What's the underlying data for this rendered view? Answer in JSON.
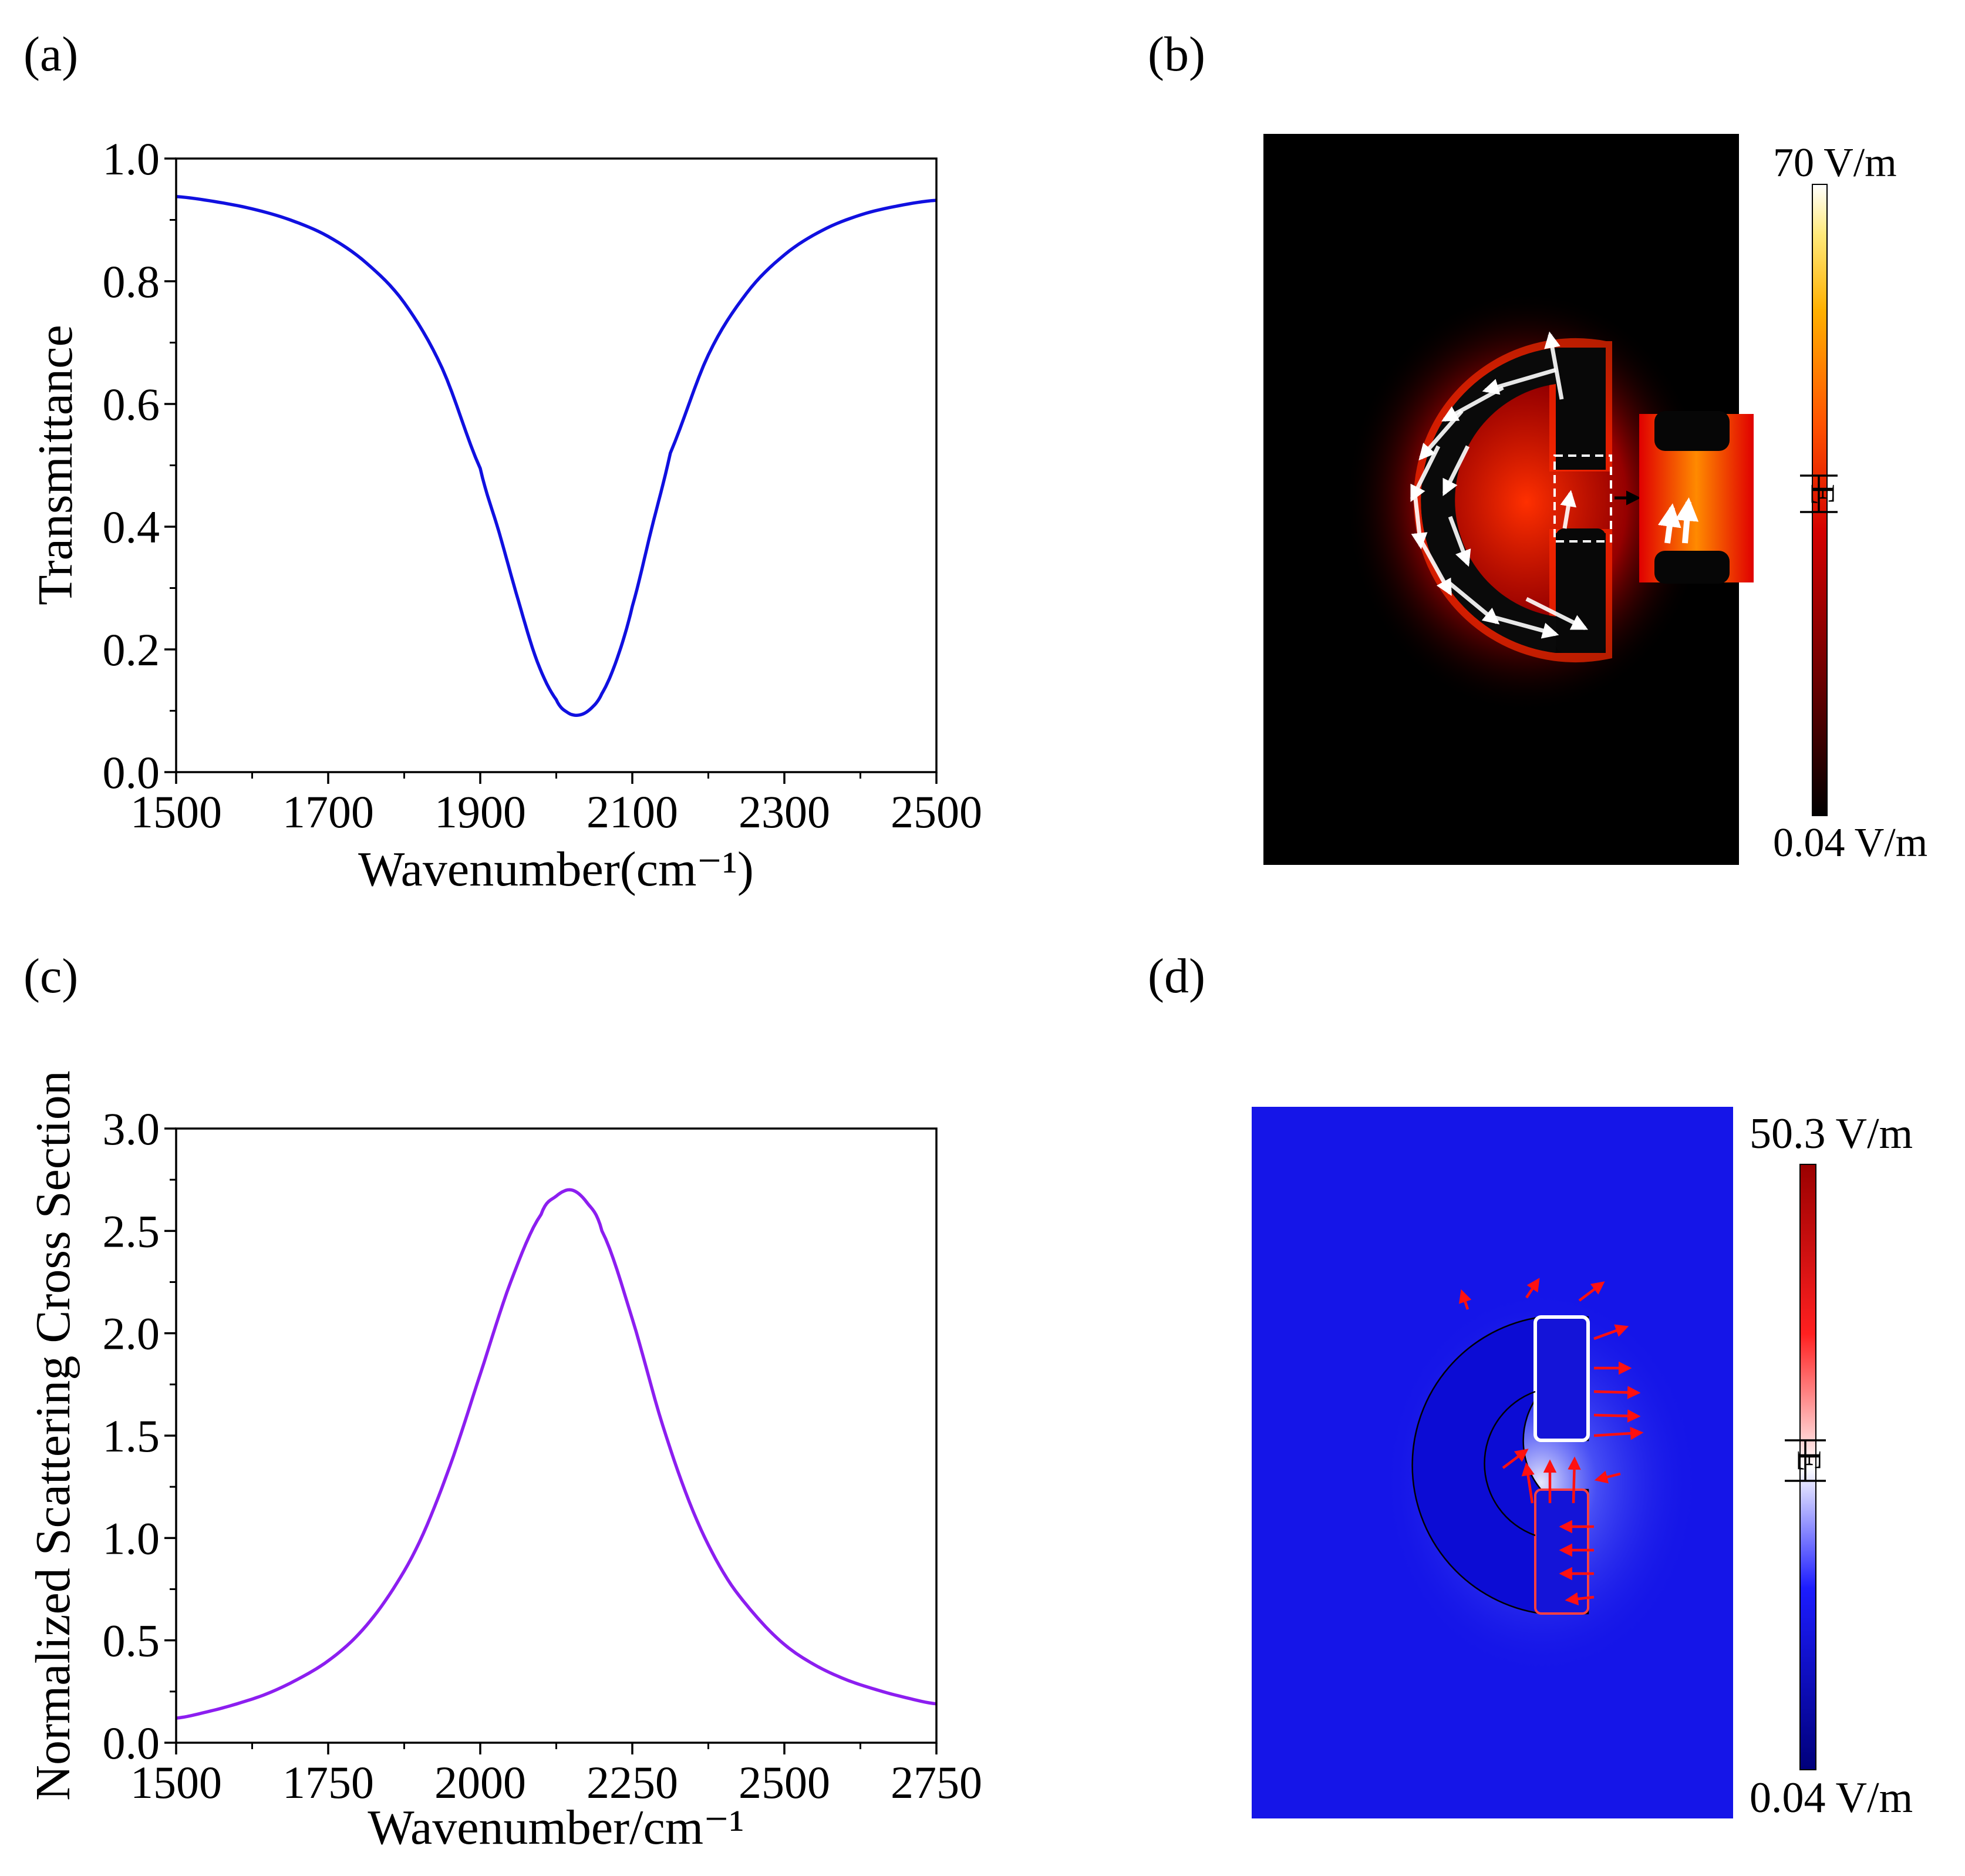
{
  "panels": [
    {
      "id": "a",
      "label": "(a)"
    },
    {
      "id": "b",
      "label": "(b)"
    },
    {
      "id": "c",
      "label": "(c)"
    },
    {
      "id": "d",
      "label": "(d)"
    }
  ],
  "chart_data": [
    {
      "panel": "a",
      "type": "line",
      "title": "",
      "xlabel": "Wavenumber(cm⁻¹)",
      "ylabel": "Transmittance",
      "xlim": [
        1500,
        2500
      ],
      "ylim": [
        0.0,
        1.0
      ],
      "xticks": [
        1500,
        1700,
        1900,
        2100,
        2300,
        2500
      ],
      "xtick_labels": [
        "1500",
        "1700",
        "1900",
        "2100",
        "2300",
        "2500"
      ],
      "yticks": [
        0.0,
        0.2,
        0.4,
        0.6,
        0.8,
        1.0
      ],
      "ytick_labels": [
        "0.0",
        "0.2",
        "0.4",
        "0.6",
        "0.8",
        "1.0"
      ],
      "grid": false,
      "series": [
        {
          "name": "Transmittance",
          "color": "#1010e0",
          "x": [
            1500,
            1550,
            1600,
            1650,
            1700,
            1750,
            1800,
            1850,
            1900,
            1925,
            1950,
            1975,
            2000,
            2015,
            2030,
            2045,
            2060,
            2080,
            2100,
            2125,
            2150,
            2200,
            2250,
            2300,
            2350,
            2400,
            2450,
            2500
          ],
          "y": [
            0.938,
            0.93,
            0.918,
            0.9,
            0.873,
            0.83,
            0.765,
            0.658,
            0.495,
            0.39,
            0.28,
            0.18,
            0.118,
            0.097,
            0.093,
            0.103,
            0.128,
            0.185,
            0.27,
            0.395,
            0.52,
            0.68,
            0.78,
            0.843,
            0.883,
            0.908,
            0.923,
            0.932
          ]
        }
      ]
    },
    {
      "panel": "c",
      "type": "line",
      "title": "",
      "xlabel": "Wavenumber/cm⁻¹",
      "ylabel": "Normalized Scattering Cross Section",
      "xlim": [
        1500,
        2750
      ],
      "ylim": [
        0.0,
        3.0
      ],
      "xticks": [
        1500,
        1750,
        2000,
        2250,
        2500,
        2750
      ],
      "xtick_labels": [
        "1500",
        "1750",
        "2000",
        "2250",
        "2500",
        "2750"
      ],
      "yticks": [
        0.0,
        0.5,
        1.0,
        1.5,
        2.0,
        2.5,
        3.0
      ],
      "ytick_labels": [
        "0.0",
        "0.5",
        "1.0",
        "1.5",
        "2.0",
        "2.5",
        "3.0"
      ],
      "grid": false,
      "series": [
        {
          "name": "Normalized Scattering Cross Section",
          "color": "#8c1ef0",
          "x": [
            1500,
            1550,
            1600,
            1650,
            1700,
            1750,
            1800,
            1850,
            1900,
            1950,
            2000,
            2050,
            2100,
            2125,
            2150,
            2175,
            2200,
            2250,
            2300,
            2350,
            2400,
            2450,
            2500,
            2550,
            2600,
            2650,
            2700,
            2750
          ],
          "y": [
            0.12,
            0.15,
            0.19,
            0.24,
            0.31,
            0.4,
            0.53,
            0.72,
            0.98,
            1.35,
            1.8,
            2.25,
            2.58,
            2.67,
            2.7,
            2.64,
            2.5,
            2.07,
            1.55,
            1.13,
            0.83,
            0.63,
            0.48,
            0.38,
            0.31,
            0.26,
            0.22,
            0.19
          ]
        }
      ]
    },
    {
      "panel": "b",
      "type": "heatmap",
      "title": "",
      "colorbar_max_label": "70 V/m",
      "colorbar_min_label": "0.04 V/m",
      "colormap": [
        "#000000",
        "#7a0000",
        "#e00000",
        "#ff6000",
        "#ffc000",
        "#ffffff"
      ],
      "field_direction_label": "E"
    },
    {
      "panel": "d",
      "type": "heatmap",
      "title": "",
      "colorbar_max_label": "50.3 V/m",
      "colorbar_min_label": "0.04 V/m",
      "colormap": [
        "#00007a",
        "#1c1cff",
        "#ffffff",
        "#ff2020",
        "#9a0000"
      ],
      "field_direction_label": "E"
    }
  ]
}
